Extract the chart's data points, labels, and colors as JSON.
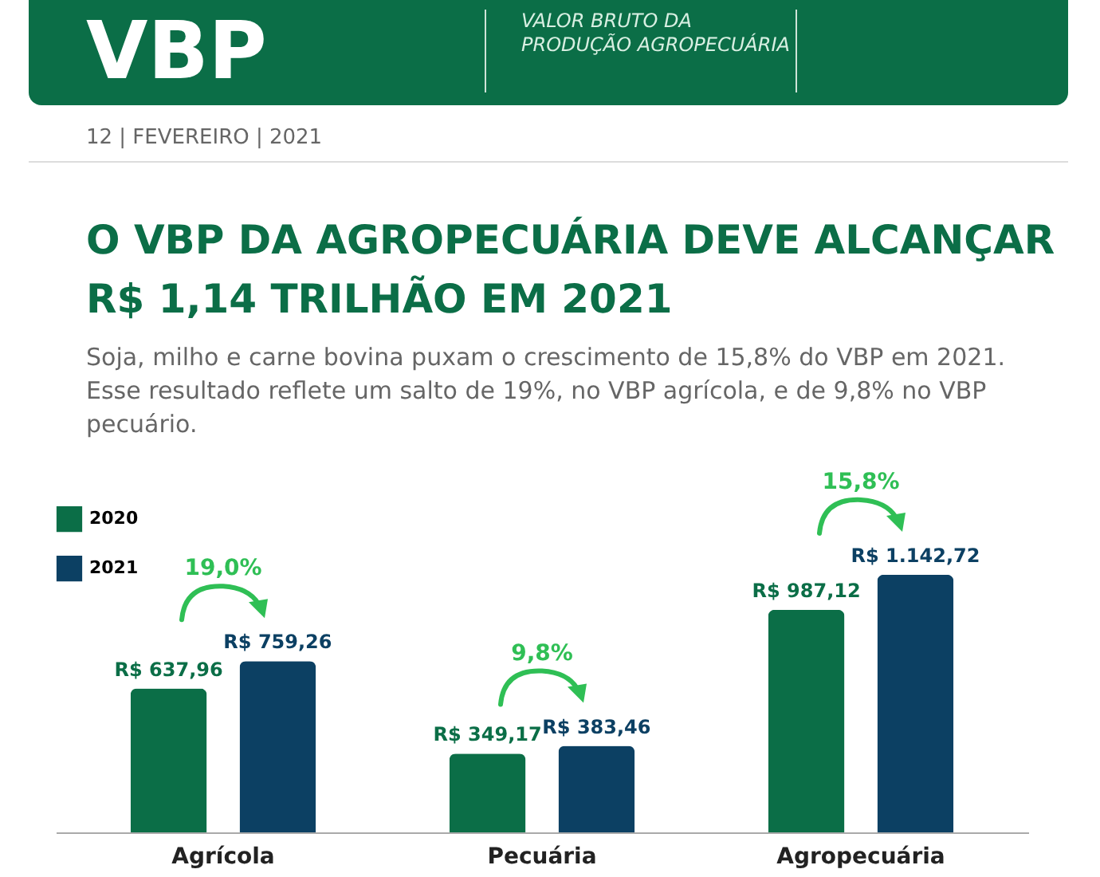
{
  "chart_data": {
    "type": "bar",
    "title": "O VBP DA AGROPECUÁRIA DEVE ALCANÇAR R$ 1,14 TRILHÃO EM 2021",
    "subtitle": "Soja, milho e carne bovina puxam o  crescimento de 15,8% do VBP em 2021. Esse resultado reflete um salto de 19%, no VBP agrícola, e de 9,8% no VBP pecuário.",
    "categories": [
      "Agrícola",
      "Pecuária",
      "Agropecuária"
    ],
    "series": [
      {
        "name": "2020",
        "color": "#0b6e47",
        "values": [
          637.96,
          349.17,
          987.12
        ],
        "value_labels": [
          "R$ 637,96",
          "R$ 349,17",
          "R$ 987,12"
        ]
      },
      {
        "name": "2021",
        "color": "#0c4063",
        "values": [
          759.26,
          383.46,
          1142.72
        ],
        "value_labels": [
          "R$ 759,26",
          "R$ 383,46",
          "R$ 1.142,72"
        ]
      }
    ],
    "ylim": [
      0,
      1450
    ],
    "legend": "top left",
    "annotations": [
      "VBP",
      "VALOR BRUTO DA PRODUÇÃO AGROPECUÁRIA",
      "12 | FEVEREIRO | 2021",
      "19,0%",
      "9,8%",
      "15,8%"
    ]
  }
}
